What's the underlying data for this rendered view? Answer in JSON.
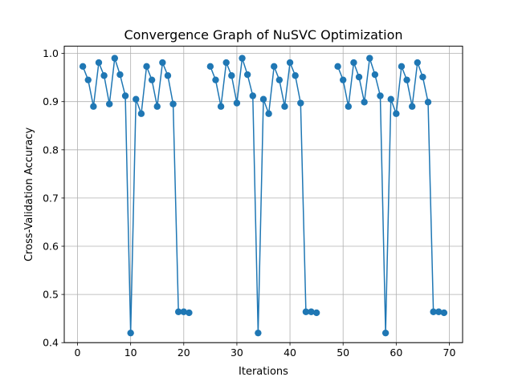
{
  "chart_data": {
    "type": "line",
    "title": "Convergence Graph of NuSVC Optimization",
    "xlabel": "Iterations",
    "ylabel": "Cross-Validation Accuracy",
    "xlim": [
      -2.5,
      72.5
    ],
    "ylim": [
      0.4,
      1.015
    ],
    "xticks": [
      0,
      10,
      20,
      30,
      40,
      50,
      60,
      70
    ],
    "yticks": [
      0.4,
      0.5,
      0.6,
      0.7,
      0.8,
      0.9,
      1.0
    ],
    "ytick_labels": [
      "0.4",
      "0.5",
      "0.6",
      "0.7",
      "0.8",
      "0.9",
      "1.0"
    ],
    "grid": true,
    "marker": "circle",
    "color": "#1f77b4",
    "segments": [
      {
        "x": [
          1,
          2,
          3,
          4,
          5,
          6,
          7,
          8,
          9,
          10,
          11,
          12,
          13,
          14,
          15,
          16,
          17,
          18,
          19,
          20,
          21
        ],
        "y": [
          0.973,
          0.945,
          0.89,
          0.981,
          0.954,
          0.895,
          0.99,
          0.956,
          0.912,
          0.42,
          0.905,
          0.875,
          0.973,
          0.945,
          0.89,
          0.981,
          0.954,
          0.895,
          0.464,
          0.464,
          0.462
        ]
      },
      {
        "x": [
          25,
          26,
          27,
          28,
          29,
          30,
          31,
          32,
          33,
          34,
          35,
          36,
          37,
          38,
          39,
          40,
          41,
          42,
          43,
          44,
          45
        ],
        "y": [
          0.973,
          0.945,
          0.89,
          0.981,
          0.954,
          0.897,
          0.99,
          0.956,
          0.912,
          0.42,
          0.905,
          0.875,
          0.973,
          0.945,
          0.89,
          0.981,
          0.954,
          0.897,
          0.464,
          0.464,
          0.462
        ]
      },
      {
        "x": [
          49,
          50,
          51,
          52,
          53,
          54,
          55,
          56,
          57,
          58,
          59,
          60,
          61,
          62,
          63,
          64,
          65,
          66,
          67,
          68,
          69
        ],
        "y": [
          0.973,
          0.945,
          0.89,
          0.981,
          0.951,
          0.899,
          0.99,
          0.956,
          0.912,
          0.42,
          0.905,
          0.875,
          0.973,
          0.945,
          0.89,
          0.981,
          0.951,
          0.899,
          0.464,
          0.464,
          0.462
        ]
      }
    ]
  }
}
